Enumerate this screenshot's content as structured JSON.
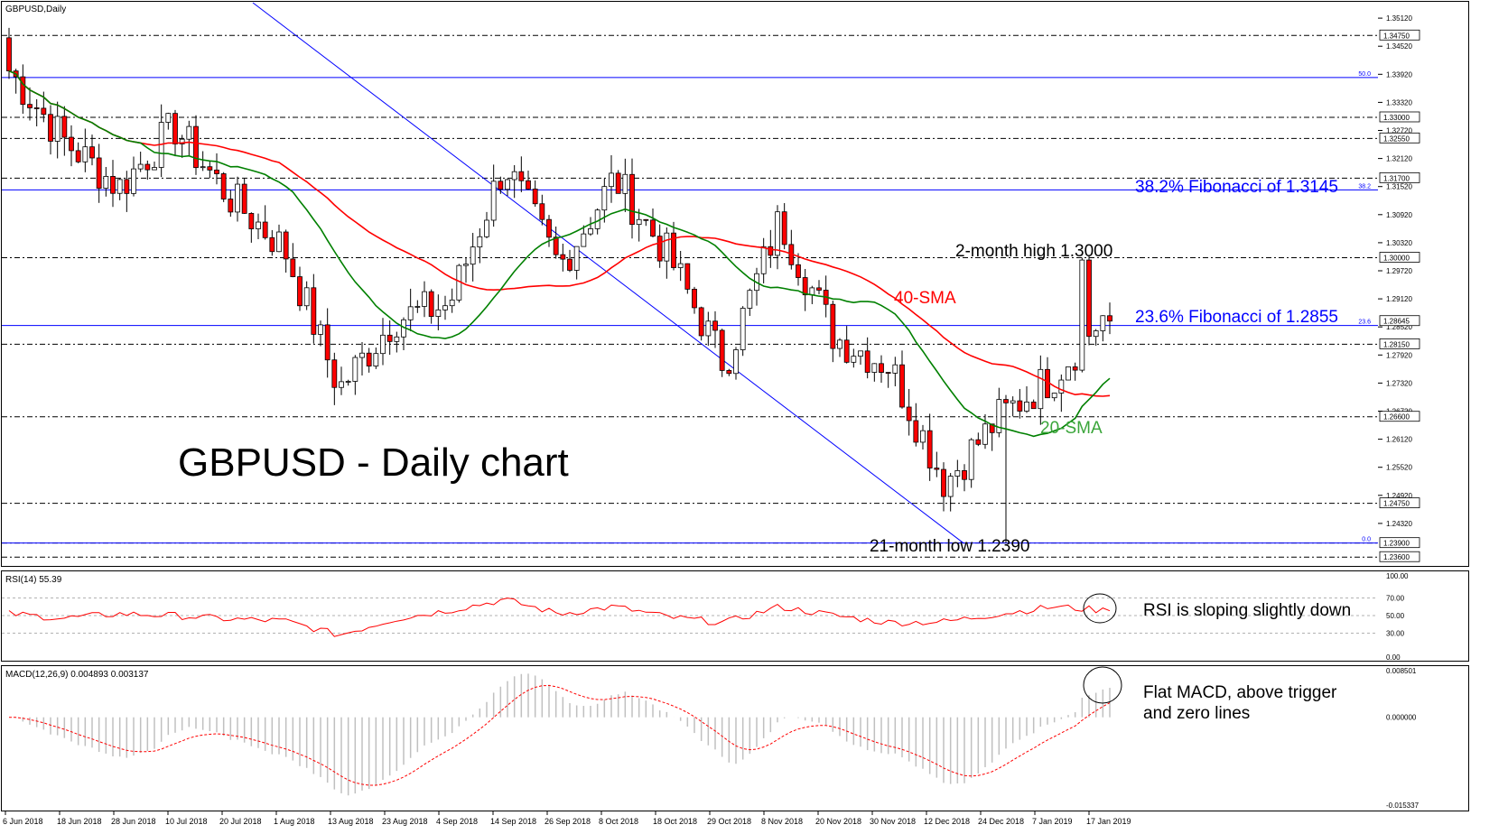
{
  "header": {
    "symbol": "GBPUSD,Daily"
  },
  "headline": "GBPUSD - Daily chart",
  "colors": {
    "bull": "#ffffff",
    "bear": "#ff0000",
    "wick": "#000000",
    "sma20": "#008000",
    "sma40": "#ff0000",
    "fib": "#0000ff",
    "rsi": "#ff0000",
    "macd_hist": "#c0c0c0",
    "macd_signal": "#ff0000",
    "grid_dash": "#000000"
  },
  "annotations": {
    "fib382": "38.2% Fibonacci of 1.3145",
    "fib236": "23.6% Fibonacci of 1.2855",
    "high": "2-month high 1.3000",
    "low": "21-month low 1.2390",
    "sma40": "40-SMA",
    "sma20": "20-SMA",
    "rsi_note": "RSI is sloping slightly down",
    "macd_note_1": "Flat MACD, above trigger",
    "macd_note_2": "and zero lines"
  },
  "fib_tags": {
    "f50": "50.0",
    "f382": "38.2",
    "f236": "23.6",
    "f0": "0.0"
  },
  "price_axis": {
    "ticks": [
      "1.35120",
      "1.34520",
      "1.33920",
      "1.33320",
      "1.32720",
      "1.32120",
      "1.31520",
      "1.30920",
      "1.30320",
      "1.29720",
      "1.29120",
      "1.28520",
      "1.27920",
      "1.27320",
      "1.26720",
      "1.26120",
      "1.25520",
      "1.24920",
      "1.24320"
    ],
    "boxed_levels": [
      "1.34750",
      "1.33000",
      "1.32550",
      "1.31700",
      "1.30000",
      "1.28645",
      "1.28150",
      "1.26600",
      "1.24750",
      "1.23900",
      "1.23600"
    ]
  },
  "rsi_panel": {
    "label": "RSI(14) 55.39",
    "ticks": [
      "100.00",
      "70.00",
      "50.00",
      "30.00",
      "0.00"
    ]
  },
  "macd_panel": {
    "label": "MACD(12,26,9) 0.004893 0.003137",
    "ticks": [
      "0.008501",
      "0.000000",
      "-0.015337"
    ]
  },
  "dates": [
    "6 Jun 2018",
    "18 Jun 2018",
    "28 Jun 2018",
    "10 Jul 2018",
    "20 Jul 2018",
    "1 Aug 2018",
    "13 Aug 2018",
    "23 Aug 2018",
    "4 Sep 2018",
    "14 Sep 2018",
    "26 Sep 2018",
    "8 Oct 2018",
    "18 Oct 2018",
    "29 Oct 2018",
    "8 Nov 2018",
    "20 Nov 2018",
    "30 Nov 2018",
    "12 Dec 2018",
    "24 Dec 2018",
    "7 Jan 2019",
    "17 Jan 2019"
  ],
  "chart_data": [
    {
      "type": "candlestick",
      "title": "GBPUSD,Daily",
      "ylim": [
        1.2345,
        1.3545
      ],
      "y_ticks": [
        1.3512,
        1.3452,
        1.3392,
        1.3332,
        1.3272,
        1.3212,
        1.3152,
        1.3092,
        1.3032,
        1.2972,
        1.2912,
        1.2852,
        1.2792,
        1.2732,
        1.2672,
        1.2612,
        1.2552,
        1.2492,
        1.2432
      ],
      "horizontal_levels": [
        1.3475,
        1.33,
        1.3255,
        1.317,
        1.3,
        1.2815,
        1.266,
        1.2475,
        1.239,
        1.236
      ],
      "fibonacci": [
        {
          "label": "50.0",
          "value": 1.3385
        },
        {
          "label": "38.2",
          "value": 1.3145
        },
        {
          "label": "23.6",
          "value": 1.2855
        },
        {
          "label": "0.0",
          "value": 1.239
        }
      ],
      "last_price": 1.28645,
      "anchors": [
        {
          "date": "6 Jun 2018",
          "close": 1.34
        },
        {
          "date": "18 Jun 2018",
          "close": 1.325
        },
        {
          "date": "28 Jun 2018",
          "close": 1.315
        },
        {
          "date": "10 Jul 2018",
          "close": 1.328
        },
        {
          "date": "20 Jul 2018",
          "close": 1.313
        },
        {
          "date": "1 Aug 2018",
          "close": 1.302
        },
        {
          "date": "13 Aug 2018",
          "close": 1.272
        },
        {
          "date": "23 Aug 2018",
          "close": 1.287
        },
        {
          "date": "4 Sep 2018",
          "close": 1.29
        },
        {
          "date": "14 Sep 2018",
          "close": 1.32
        },
        {
          "date": "26 Sep 2018",
          "close": 1.298
        },
        {
          "date": "8 Oct 2018",
          "close": 1.317
        },
        {
          "date": "18 Oct 2018",
          "close": 1.3
        },
        {
          "date": "29 Oct 2018",
          "close": 1.277
        },
        {
          "date": "8 Nov 2018",
          "close": 1.308
        },
        {
          "date": "20 Nov 2018",
          "close": 1.283
        },
        {
          "date": "30 Nov 2018",
          "close": 1.277
        },
        {
          "date": "12 Dec 2018",
          "close": 1.252
        },
        {
          "date": "24 Dec 2018",
          "close": 1.266
        },
        {
          "date": "7 Jan 2019",
          "close": 1.275
        },
        {
          "date": "17 Jan 2019",
          "close": 1.289
        }
      ],
      "annotations": [
        "38.2% Fibonacci of 1.3145",
        "23.6% Fibonacci of 1.2855",
        "2-month high 1.3000",
        "21-month low 1.2390",
        "40-SMA",
        "20-SMA"
      ]
    },
    {
      "type": "line",
      "title": "RSI(14) 55.39",
      "ylim": [
        0,
        100
      ],
      "y_ticks": [
        100,
        70,
        50,
        30,
        0
      ],
      "last_value": 55.39,
      "anchors": [
        52,
        47,
        52,
        50,
        46,
        44,
        28,
        46,
        56,
        68,
        52,
        60,
        48,
        42,
        60,
        50,
        42,
        43,
        52,
        60,
        55.39
      ]
    },
    {
      "type": "line",
      "title": "MACD(12,26,9) 0.004893 0.003137",
      "ylim": [
        -0.015337,
        0.008501
      ],
      "y_ticks": [
        0.008501,
        0.0,
        -0.015337
      ],
      "macd": 0.004893,
      "signal": 0.003137
    }
  ]
}
